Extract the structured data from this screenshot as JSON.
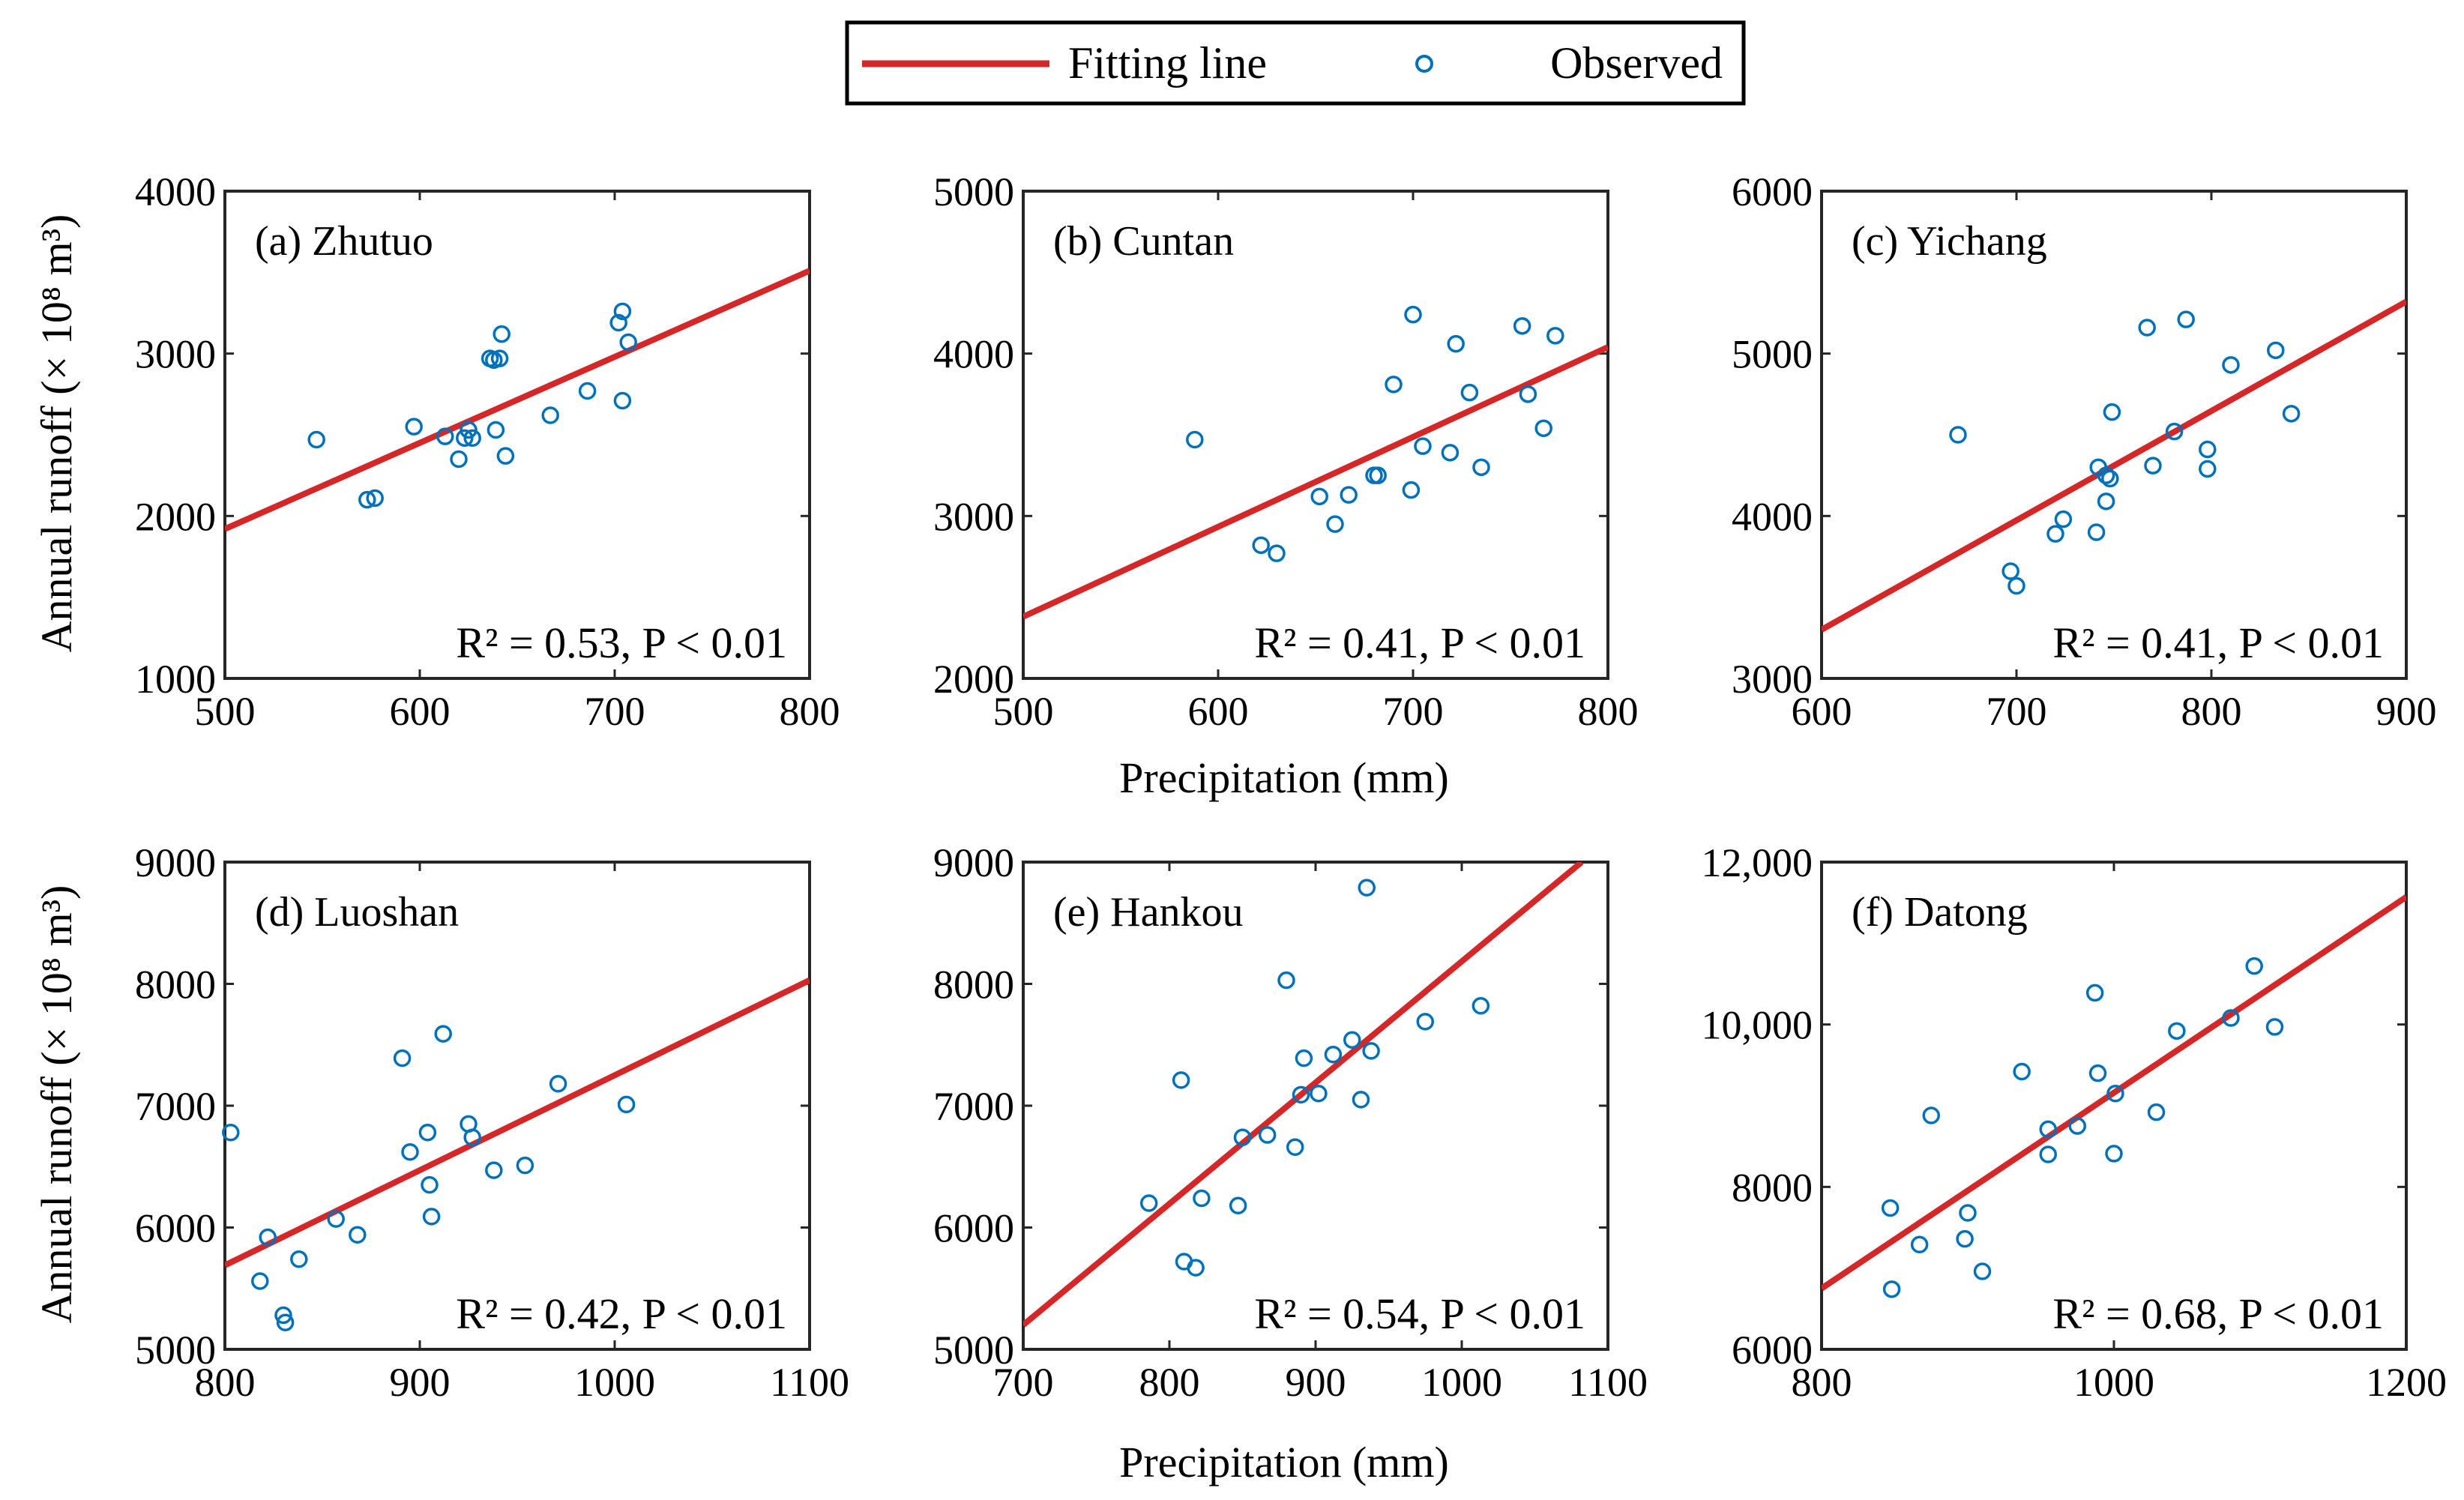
{
  "legend": {
    "fit_label": "Fitting line",
    "obs_label": "Observed",
    "fit_color": "#d62728",
    "obs_color": "#0072bd"
  },
  "axis_labels": {
    "x": "Precipitation (mm)",
    "y": "Annual runoff (× 10⁸ m³)"
  },
  "chart_data": [
    {
      "type": "scatter",
      "title": "(a) Zhutuo",
      "annotation": "R² = 0.53, P < 0.01",
      "xlim": [
        500,
        800
      ],
      "ylim": [
        1000,
        4000
      ],
      "xticks": [
        500,
        600,
        700,
        800
      ],
      "yticks": [
        1000,
        2000,
        3000,
        4000
      ],
      "ytick_labels": [
        "1000",
        "2000",
        "3000",
        "4000"
      ],
      "fit": {
        "x": [
          500,
          800
        ],
        "y": [
          1920,
          3510
        ]
      },
      "points": [
        [
          547,
          2470
        ],
        [
          573,
          2100
        ],
        [
          577,
          2110
        ],
        [
          597,
          2550
        ],
        [
          613,
          2490
        ],
        [
          620,
          2350
        ],
        [
          623,
          2480
        ],
        [
          625,
          2530
        ],
        [
          627,
          2480
        ],
        [
          636,
          2970
        ],
        [
          638,
          2960
        ],
        [
          639,
          2530
        ],
        [
          641,
          2970
        ],
        [
          642,
          3120
        ],
        [
          644,
          2370
        ],
        [
          667,
          2620
        ],
        [
          686,
          2770
        ],
        [
          702,
          3190
        ],
        [
          704,
          3260
        ],
        [
          704,
          2710
        ],
        [
          707,
          3070
        ]
      ]
    },
    {
      "type": "scatter",
      "title": "(b) Cuntan",
      "annotation": "R² = 0.41, P < 0.01",
      "xlim": [
        500,
        800
      ],
      "ylim": [
        2000,
        5000
      ],
      "xticks": [
        500,
        600,
        700,
        800
      ],
      "yticks": [
        2000,
        3000,
        4000,
        5000
      ],
      "ytick_labels": [
        "2000",
        "3000",
        "4000",
        "5000"
      ],
      "fit": {
        "x": [
          500,
          800
        ],
        "y": [
          2380,
          4040
        ]
      },
      "points": [
        [
          588,
          3470
        ],
        [
          622,
          2820
        ],
        [
          630,
          2770
        ],
        [
          652,
          3120
        ],
        [
          660,
          2950
        ],
        [
          667,
          3130
        ],
        [
          680,
          3250
        ],
        [
          682,
          3250
        ],
        [
          690,
          3810
        ],
        [
          699,
          3160
        ],
        [
          700,
          4240
        ],
        [
          705,
          3430
        ],
        [
          719,
          3390
        ],
        [
          722,
          4060
        ],
        [
          729,
          3760
        ],
        [
          735,
          3300
        ],
        [
          756,
          4170
        ],
        [
          759,
          3750
        ],
        [
          767,
          3540
        ],
        [
          773,
          4110
        ]
      ]
    },
    {
      "type": "scatter",
      "title": "(c) Yichang",
      "annotation": "R² = 0.41, P < 0.01",
      "xlim": [
        600,
        900
      ],
      "ylim": [
        3000,
        6000
      ],
      "xticks": [
        600,
        700,
        800,
        900
      ],
      "yticks": [
        3000,
        4000,
        5000,
        6000
      ],
      "ytick_labels": [
        "3000",
        "4000",
        "5000",
        "6000"
      ],
      "fit": {
        "x": [
          600,
          900
        ],
        "y": [
          3300,
          5320
        ]
      },
      "points": [
        [
          670,
          4500
        ],
        [
          697,
          3660
        ],
        [
          700,
          3570
        ],
        [
          720,
          3890
        ],
        [
          724,
          3980
        ],
        [
          741,
          3900
        ],
        [
          742,
          4300
        ],
        [
          746,
          4250
        ],
        [
          746,
          4090
        ],
        [
          748,
          4230
        ],
        [
          749,
          4640
        ],
        [
          767,
          5160
        ],
        [
          770,
          4310
        ],
        [
          781,
          4520
        ],
        [
          787,
          5210
        ],
        [
          798,
          4410
        ],
        [
          798,
          4290
        ],
        [
          810,
          4930
        ],
        [
          833,
          5020
        ],
        [
          841,
          4630
        ]
      ]
    },
    {
      "type": "scatter",
      "title": "(d) Luoshan",
      "annotation": "R² = 0.42, P < 0.01",
      "xlim": [
        800,
        1100
      ],
      "ylim": [
        5000,
        9000
      ],
      "xticks": [
        800,
        900,
        1000,
        1100
      ],
      "yticks": [
        5000,
        6000,
        7000,
        8000,
        9000
      ],
      "ytick_labels": [
        "5000",
        "6000",
        "7000",
        "8000",
        "9000"
      ],
      "fit": {
        "x": [
          800,
          1100
        ],
        "y": [
          5690,
          8030
        ]
      },
      "points": [
        [
          803,
          6780
        ],
        [
          818,
          5560
        ],
        [
          822,
          5920
        ],
        [
          830,
          5280
        ],
        [
          831,
          5220
        ],
        [
          838,
          5740
        ],
        [
          857,
          6070
        ],
        [
          868,
          5940
        ],
        [
          891,
          7390
        ],
        [
          895,
          6620
        ],
        [
          904,
          6780
        ],
        [
          905,
          6350
        ],
        [
          906,
          6090
        ],
        [
          912,
          7590
        ],
        [
          925,
          6850
        ],
        [
          927,
          6740
        ],
        [
          938,
          6470
        ],
        [
          954,
          6510
        ],
        [
          971,
          7180
        ],
        [
          1006,
          7010
        ]
      ]
    },
    {
      "type": "scatter",
      "title": "(e) Hankou",
      "annotation": "R² = 0.54, P < 0.01",
      "xlim": [
        700,
        1100
      ],
      "ylim": [
        5000,
        9000
      ],
      "xticks": [
        700,
        800,
        900,
        1000,
        1100
      ],
      "yticks": [
        5000,
        6000,
        7000,
        8000,
        9000
      ],
      "ytick_labels": [
        "5000",
        "6000",
        "7000",
        "8000",
        "9000"
      ],
      "fit": {
        "x": [
          700,
          1082
        ],
        "y": [
          5200,
          9000
        ]
      },
      "points": [
        [
          786,
          6200
        ],
        [
          808,
          7210
        ],
        [
          810,
          5720
        ],
        [
          818,
          5670
        ],
        [
          822,
          6240
        ],
        [
          847,
          6180
        ],
        [
          850,
          6740
        ],
        [
          867,
          6760
        ],
        [
          880,
          8030
        ],
        [
          886,
          6660
        ],
        [
          890,
          7090
        ],
        [
          892,
          7390
        ],
        [
          902,
          7100
        ],
        [
          912,
          7420
        ],
        [
          925,
          7540
        ],
        [
          931,
          7050
        ],
        [
          938,
          7450
        ],
        [
          935,
          8790
        ],
        [
          975,
          7690
        ],
        [
          1013,
          7820
        ]
      ]
    },
    {
      "type": "scatter",
      "title": "(f) Datong",
      "annotation": "R² = 0.68, P < 0.01",
      "xlim": [
        800,
        1200
      ],
      "ylim": [
        6000,
        12000
      ],
      "xticks": [
        800,
        1000,
        1200
      ],
      "xtick_labels": [
        "800",
        "1000",
        "1200"
      ],
      "yticks": [
        6000,
        8000,
        10000,
        12000
      ],
      "ytick_labels": [
        "6000",
        "8000",
        "10,000",
        "12,000"
      ],
      "fit": {
        "x": [
          800,
          1200
        ],
        "y": [
          6750,
          11570
        ]
      },
      "points": [
        [
          847,
          7740
        ],
        [
          848,
          6740
        ],
        [
          867,
          7290
        ],
        [
          875,
          8880
        ],
        [
          898,
          7360
        ],
        [
          900,
          7680
        ],
        [
          910,
          6960
        ],
        [
          937,
          9420
        ],
        [
          955,
          8710
        ],
        [
          955,
          8400
        ],
        [
          975,
          8750
        ],
        [
          987,
          10390
        ],
        [
          989,
          9400
        ],
        [
          1000,
          8410
        ],
        [
          1001,
          9150
        ],
        [
          1029,
          8920
        ],
        [
          1043,
          9920
        ],
        [
          1080,
          10080
        ],
        [
          1096,
          10720
        ],
        [
          1110,
          9970
        ]
      ]
    }
  ]
}
